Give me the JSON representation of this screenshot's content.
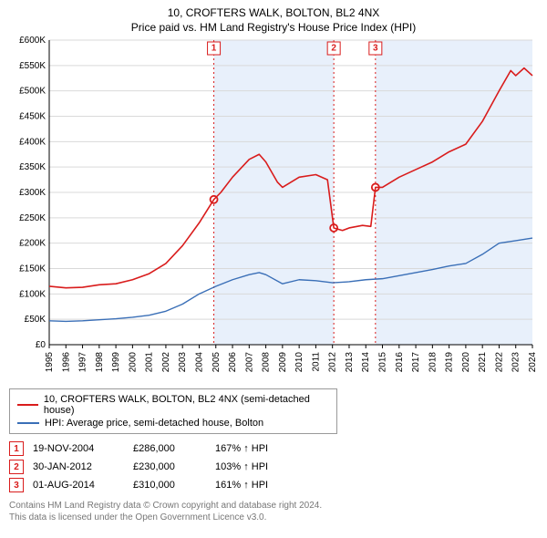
{
  "title_line1": "10, CROFTERS WALK, BOLTON, BL2 4NX",
  "title_line2": "Price paid vs. HM Land Registry's House Price Index (HPI)",
  "chart": {
    "type": "line",
    "background_color": "#ffffff",
    "grid_color": "#d9d9d9",
    "shaded_band_color": "#e8f0fb",
    "x": {
      "min": 1995,
      "max": 2024,
      "ticks": [
        1995,
        1996,
        1997,
        1998,
        1999,
        2000,
        2001,
        2002,
        2003,
        2004,
        2005,
        2006,
        2007,
        2008,
        2009,
        2010,
        2011,
        2012,
        2013,
        2014,
        2015,
        2016,
        2017,
        2018,
        2019,
        2020,
        2021,
        2022,
        2023,
        2024
      ],
      "label_rotation": -90,
      "fontsize": 10
    },
    "y": {
      "min": 0,
      "max": 600000,
      "ticks": [
        0,
        50000,
        100000,
        150000,
        200000,
        250000,
        300000,
        350000,
        400000,
        450000,
        500000,
        550000,
        600000
      ],
      "tick_labels": [
        "£0",
        "£50K",
        "£100K",
        "£150K",
        "£200K",
        "£250K",
        "£300K",
        "£350K",
        "£400K",
        "£450K",
        "£500K",
        "£550K",
        "£600K"
      ],
      "fontsize": 10
    },
    "series": [
      {
        "name": "property",
        "legend": "10, CROFTERS WALK, BOLTON, BL2 4NX (semi-detached house)",
        "color": "#d91c1c",
        "line_width": 1.6,
        "data": [
          [
            1995,
            115000
          ],
          [
            1996,
            112000
          ],
          [
            1997,
            113000
          ],
          [
            1998,
            118000
          ],
          [
            1999,
            120000
          ],
          [
            2000,
            128000
          ],
          [
            2001,
            140000
          ],
          [
            2002,
            160000
          ],
          [
            2003,
            195000
          ],
          [
            2004,
            240000
          ],
          [
            2004.88,
            286000
          ],
          [
            2005.3,
            300000
          ],
          [
            2006,
            330000
          ],
          [
            2007,
            365000
          ],
          [
            2007.6,
            375000
          ],
          [
            2008,
            360000
          ],
          [
            2008.7,
            320000
          ],
          [
            2009,
            310000
          ],
          [
            2010,
            330000
          ],
          [
            2011,
            335000
          ],
          [
            2011.7,
            325000
          ],
          [
            2012.08,
            230000
          ],
          [
            2012.6,
            225000
          ],
          [
            2013,
            230000
          ],
          [
            2013.8,
            235000
          ],
          [
            2014.3,
            233000
          ],
          [
            2014.58,
            310000
          ],
          [
            2015,
            310000
          ],
          [
            2016,
            330000
          ],
          [
            2017,
            345000
          ],
          [
            2018,
            360000
          ],
          [
            2019,
            380000
          ],
          [
            2020,
            395000
          ],
          [
            2021,
            440000
          ],
          [
            2022,
            500000
          ],
          [
            2022.7,
            540000
          ],
          [
            2023,
            530000
          ],
          [
            2023.5,
            545000
          ],
          [
            2024,
            530000
          ]
        ]
      },
      {
        "name": "hpi",
        "legend": "HPI: Average price, semi-detached house, Bolton",
        "color": "#3a6fb7",
        "line_width": 1.4,
        "data": [
          [
            1995,
            47000
          ],
          [
            1996,
            46000
          ],
          [
            1997,
            47000
          ],
          [
            1998,
            49000
          ],
          [
            1999,
            51000
          ],
          [
            2000,
            54000
          ],
          [
            2001,
            58000
          ],
          [
            2002,
            66000
          ],
          [
            2003,
            80000
          ],
          [
            2004,
            100000
          ],
          [
            2005,
            115000
          ],
          [
            2006,
            128000
          ],
          [
            2007,
            138000
          ],
          [
            2007.6,
            142000
          ],
          [
            2008,
            138000
          ],
          [
            2009,
            120000
          ],
          [
            2010,
            128000
          ],
          [
            2011,
            126000
          ],
          [
            2012,
            122000
          ],
          [
            2013,
            124000
          ],
          [
            2014,
            128000
          ],
          [
            2015,
            130000
          ],
          [
            2016,
            136000
          ],
          [
            2017,
            142000
          ],
          [
            2018,
            148000
          ],
          [
            2019,
            155000
          ],
          [
            2020,
            160000
          ],
          [
            2021,
            178000
          ],
          [
            2022,
            200000
          ],
          [
            2023,
            205000
          ],
          [
            2024,
            210000
          ]
        ]
      }
    ],
    "sale_markers": [
      {
        "n": "1",
        "x": 2004.88,
        "y": 286000,
        "color": "#d91c1c",
        "line_style": "dotted"
      },
      {
        "n": "2",
        "x": 2012.08,
        "y": 230000,
        "color": "#d91c1c",
        "line_style": "dotted"
      },
      {
        "n": "3",
        "x": 2014.58,
        "y": 310000,
        "color": "#d91c1c",
        "line_style": "dotted"
      }
    ],
    "shaded_bands": [
      {
        "from": 2004.88,
        "to": 2012.08
      },
      {
        "from": 2014.58,
        "to": 2024
      }
    ]
  },
  "legend": {
    "border_color": "#999999",
    "rows": [
      {
        "color": "#d91c1c",
        "label": "10, CROFTERS WALK, BOLTON, BL2 4NX (semi-detached house)"
      },
      {
        "color": "#3a6fb7",
        "label": "HPI: Average price, semi-detached house, Bolton"
      }
    ]
  },
  "sales": [
    {
      "n": "1",
      "date": "19-NOV-2004",
      "price": "£286,000",
      "hpi": "167% ↑ HPI",
      "color": "#d91c1c"
    },
    {
      "n": "2",
      "date": "30-JAN-2012",
      "price": "£230,000",
      "hpi": "103% ↑ HPI",
      "color": "#d91c1c"
    },
    {
      "n": "3",
      "date": "01-AUG-2014",
      "price": "£310,000",
      "hpi": "161% ↑ HPI",
      "color": "#d91c1c"
    }
  ],
  "footer_line1": "Contains HM Land Registry data © Crown copyright and database right 2024.",
  "footer_line2": "This data is licensed under the Open Government Licence v3.0."
}
